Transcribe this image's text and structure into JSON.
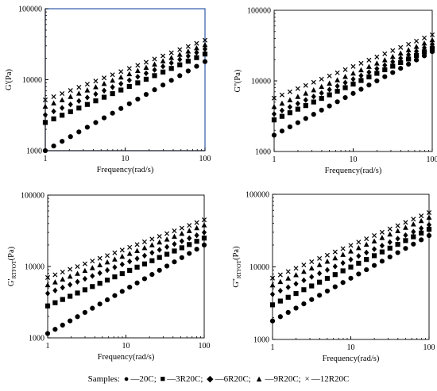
{
  "chart_data": [
    {
      "type": "scatter",
      "xlabel": "Frequency(rad/s)",
      "ylabel": "G'(Pa)",
      "x_scale": "log",
      "y_scale": "log",
      "xlim": [
        1,
        100
      ],
      "ylim": [
        1000,
        100000
      ],
      "x_ticks": [
        "1",
        "10",
        "100"
      ],
      "y_ticks": [
        "1000",
        "10000",
        "100000"
      ],
      "blue_border": true,
      "series": [
        {
          "name": "20C",
          "marker": "circle",
          "y_start": 1000,
          "y_end": 18000
        },
        {
          "name": "3R20C",
          "marker": "square",
          "y_start": 2500,
          "y_end": 23000
        },
        {
          "name": "6R20C",
          "marker": "diamond",
          "y_start": 3200,
          "y_end": 27000
        },
        {
          "name": "9R20C",
          "marker": "triangle",
          "y_start": 4200,
          "y_end": 31000
        },
        {
          "name": "12R20C",
          "marker": "cross",
          "y_start": 5200,
          "y_end": 36000
        }
      ]
    },
    {
      "type": "scatter",
      "xlabel": "Frequency(rad/s)",
      "ylabel": "G''(Pa)",
      "x_scale": "log",
      "y_scale": "log",
      "xlim": [
        1,
        100
      ],
      "ylim": [
        1000,
        100000
      ],
      "x_ticks": [
        "1",
        "10",
        "100"
      ],
      "y_ticks": [
        "1000",
        "10000",
        "100000"
      ],
      "blue_border": false,
      "series": [
        {
          "name": "20C",
          "marker": "circle",
          "y_start": 1700,
          "y_end": 26000
        },
        {
          "name": "3R20C",
          "marker": "square",
          "y_start": 2800,
          "y_end": 29000
        },
        {
          "name": "6R20C",
          "marker": "diamond",
          "y_start": 3400,
          "y_end": 33000
        },
        {
          "name": "9R20C",
          "marker": "triangle",
          "y_start": 4300,
          "y_end": 38000
        },
        {
          "name": "12R20C",
          "marker": "cross",
          "y_start": 5700,
          "y_end": 45000
        }
      ]
    },
    {
      "type": "scatter",
      "xlabel": "Frequency(rad/s)",
      "ylabel_main": "G'",
      "ylabel_sub": "RTFOT",
      "ylabel_unit": "(Pa)",
      "x_scale": "log",
      "y_scale": "log",
      "xlim": [
        1,
        100
      ],
      "ylim": [
        1000,
        100000
      ],
      "x_ticks": [
        "1",
        "10",
        "100"
      ],
      "y_ticks": [
        "1000",
        "10000",
        "100000"
      ],
      "blue_border": false,
      "series": [
        {
          "name": "20C",
          "marker": "circle",
          "y_start": 1150,
          "y_end": 20000
        },
        {
          "name": "3R20C",
          "marker": "square",
          "y_start": 2800,
          "y_end": 25000
        },
        {
          "name": "6R20C",
          "marker": "diamond",
          "y_start": 4200,
          "y_end": 30000
        },
        {
          "name": "9R20C",
          "marker": "triangle",
          "y_start": 5500,
          "y_end": 38000
        },
        {
          "name": "12R20C",
          "marker": "cross",
          "y_start": 7000,
          "y_end": 45000
        }
      ]
    },
    {
      "type": "scatter",
      "xlabel": "Frequency(rad/s)",
      "ylabel_main": "G''",
      "ylabel_sub": "RTFOT",
      "ylabel_unit": "(Pa)",
      "x_scale": "log",
      "y_scale": "log",
      "xlim": [
        1,
        100
      ],
      "ylim": [
        1000,
        100000
      ],
      "x_ticks": [
        "1",
        "10",
        "100"
      ],
      "y_ticks": [
        "1000",
        "10000",
        "100000"
      ],
      "blue_border": false,
      "series": [
        {
          "name": "20C",
          "marker": "circle",
          "y_start": 1800,
          "y_end": 27000
        },
        {
          "name": "3R20C",
          "marker": "square",
          "y_start": 3000,
          "y_end": 33000
        },
        {
          "name": "6R20C",
          "marker": "diamond",
          "y_start": 4200,
          "y_end": 38000
        },
        {
          "name": "9R20C",
          "marker": "triangle",
          "y_start": 5600,
          "y_end": 48000
        },
        {
          "name": "12R20C",
          "marker": "cross",
          "y_start": 7000,
          "y_end": 56000
        }
      ]
    }
  ],
  "legend": {
    "prefix": "Samples:",
    "items": [
      {
        "marker": "circle",
        "symbol": "●",
        "label": "—20C;"
      },
      {
        "marker": "square",
        "symbol": "■",
        "label": "—3R20C;"
      },
      {
        "marker": "diamond",
        "symbol": "◆",
        "label": "—6R20C;"
      },
      {
        "marker": "triangle",
        "symbol": "▲",
        "label": "—9R20C;"
      },
      {
        "marker": "cross",
        "symbol": "×",
        "label": "—12R20C"
      }
    ]
  }
}
